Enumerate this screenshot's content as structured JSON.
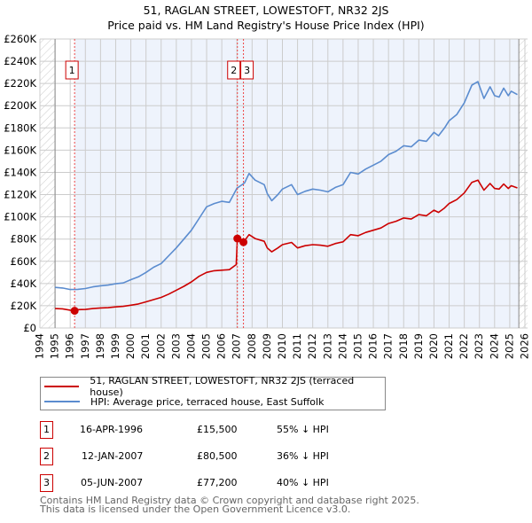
{
  "title": "51, RAGLAN STREET, LOWESTOFT, NR32 2JS",
  "subtitle": "Price paid vs. HM Land Registry's House Price Index (HPI)",
  "colors": {
    "property": "#cc0000",
    "hpi": "#5b8ccf",
    "shade": "#eef3fc"
  },
  "legend": {
    "property": "51, RAGLAN STREET, LOWESTOFT, NR32 2JS (terraced house)",
    "hpi": "HPI: Average price, terraced house, East Suffolk"
  },
  "transactions": [
    {
      "num": "1",
      "date": "16-APR-1996",
      "price": "£15,500",
      "hpi_diff": "55% ↓ HPI"
    },
    {
      "num": "2",
      "date": "12-JAN-2007",
      "price": "£80,500",
      "hpi_diff": "36% ↓ HPI"
    },
    {
      "num": "3",
      "date": "05-JUN-2007",
      "price": "£77,200",
      "hpi_diff": "40% ↓ HPI"
    }
  ],
  "footer": {
    "line1": "Contains HM Land Registry data © Crown copyright and database right 2025.",
    "line2": "This data is licensed under the Open Government Licence v3.0."
  },
  "chart_data": {
    "type": "line",
    "xlim": [
      1994,
      2026
    ],
    "ylim": [
      0,
      260000
    ],
    "yticks": [
      0,
      20000,
      40000,
      60000,
      80000,
      100000,
      120000,
      140000,
      160000,
      180000,
      200000,
      220000,
      240000,
      260000
    ],
    "ytick_labels": [
      "£0",
      "£20K",
      "£40K",
      "£60K",
      "£80K",
      "£100K",
      "£120K",
      "£140K",
      "£160K",
      "£180K",
      "£200K",
      "£220K",
      "£240K",
      "£260K"
    ],
    "xticks": [
      1994,
      1995,
      1996,
      1997,
      1998,
      1999,
      2000,
      2001,
      2002,
      2003,
      2004,
      2005,
      2006,
      2007,
      2008,
      2009,
      2010,
      2011,
      2012,
      2013,
      2014,
      2015,
      2016,
      2017,
      2018,
      2019,
      2020,
      2021,
      2022,
      2023,
      2024,
      2025,
      2026
    ],
    "data_range": [
      1995,
      2025.6
    ],
    "grid": true,
    "sales": [
      {
        "label": "1",
        "x": 1996.29,
        "y": 15500
      },
      {
        "label": "2",
        "x": 2007.03,
        "y": 80500
      },
      {
        "label": "3",
        "x": 2007.43,
        "y": 77200
      }
    ],
    "series": [
      {
        "name": "hpi",
        "x": [
          1995,
          1995.5,
          1996,
          1996.5,
          1997,
          1997.5,
          1998,
          1998.5,
          1999,
          1999.5,
          2000,
          2000.5,
          2001,
          2001.5,
          2002,
          2002.5,
          2003,
          2003.5,
          2004,
          2004.5,
          2005,
          2005.5,
          2006,
          2006.5,
          2007,
          2007.5,
          2007.8,
          2008.2,
          2008.8,
          2009,
          2009.3,
          2009.7,
          2010,
          2010.6,
          2011,
          2011.5,
          2012,
          2012.5,
          2013,
          2013.5,
          2014,
          2014.5,
          2015,
          2015.5,
          2016,
          2016.5,
          2017,
          2017.5,
          2018,
          2018.5,
          2019,
          2019.5,
          2020,
          2020.3,
          2020.7,
          2021,
          2021.5,
          2022,
          2022.5,
          2022.9,
          2023.3,
          2023.7,
          2024,
          2024.3,
          2024.6,
          2024.9,
          2025.1,
          2025.5
        ],
        "y": [
          36500,
          36000,
          34600,
          34800,
          35500,
          37000,
          38000,
          38600,
          39800,
          40500,
          43500,
          46000,
          50000,
          54600,
          58000,
          65000,
          72000,
          80000,
          88000,
          98500,
          109000,
          112000,
          114000,
          113000,
          125700,
          130500,
          139000,
          133000,
          129000,
          121000,
          114500,
          120000,
          125000,
          129000,
          120000,
          123000,
          125000,
          124000,
          122500,
          126500,
          129000,
          140000,
          138500,
          143000,
          146500,
          150000,
          156000,
          159000,
          164000,
          163000,
          169000,
          168000,
          176000,
          173000,
          180000,
          186500,
          192000,
          202500,
          218500,
          221600,
          206500,
          217000,
          209000,
          207800,
          215800,
          209000,
          213000,
          210000
        ]
      },
      {
        "name": "property",
        "x": [
          1995,
          1995.5,
          1996,
          1996.29,
          1996.5,
          1997,
          1997.5,
          1998,
          1998.5,
          1999,
          1999.5,
          2000,
          2000.5,
          2001,
          2001.5,
          2002,
          2002.5,
          2003,
          2003.5,
          2004,
          2004.5,
          2005,
          2005.5,
          2006,
          2006.5,
          2006.95,
          2007.03,
          2007.43,
          2007.8,
          2008.2,
          2008.8,
          2009,
          2009.3,
          2009.7,
          2010,
          2010.6,
          2011,
          2011.5,
          2012,
          2012.5,
          2013,
          2013.5,
          2014,
          2014.5,
          2015,
          2015.5,
          2016,
          2016.5,
          2017,
          2017.5,
          2018,
          2018.5,
          2019,
          2019.5,
          2020,
          2020.3,
          2020.7,
          2021,
          2021.5,
          2022,
          2022.5,
          2022.9,
          2023.3,
          2023.7,
          2024,
          2024.3,
          2024.6,
          2024.9,
          2025.1,
          2025.5
        ],
        "y": [
          17500,
          17200,
          16000,
          15500,
          16500,
          16700,
          17500,
          18000,
          18300,
          19000,
          19500,
          20500,
          21600,
          23500,
          25500,
          27500,
          30500,
          34000,
          37500,
          41500,
          46500,
          50000,
          51500,
          52000,
          52500,
          57000,
          80500,
          77200,
          84000,
          80500,
          78000,
          72000,
          68500,
          72000,
          75000,
          77000,
          72000,
          74000,
          75000,
          74500,
          73500,
          76000,
          77500,
          84000,
          83000,
          86000,
          88000,
          90000,
          94000,
          96000,
          99000,
          98000,
          102000,
          101000,
          106000,
          104000,
          108000,
          112000,
          115500,
          121500,
          131000,
          133000,
          124000,
          130000,
          125500,
          125000,
          129500,
          125500,
          128000,
          126000
        ]
      }
    ]
  }
}
